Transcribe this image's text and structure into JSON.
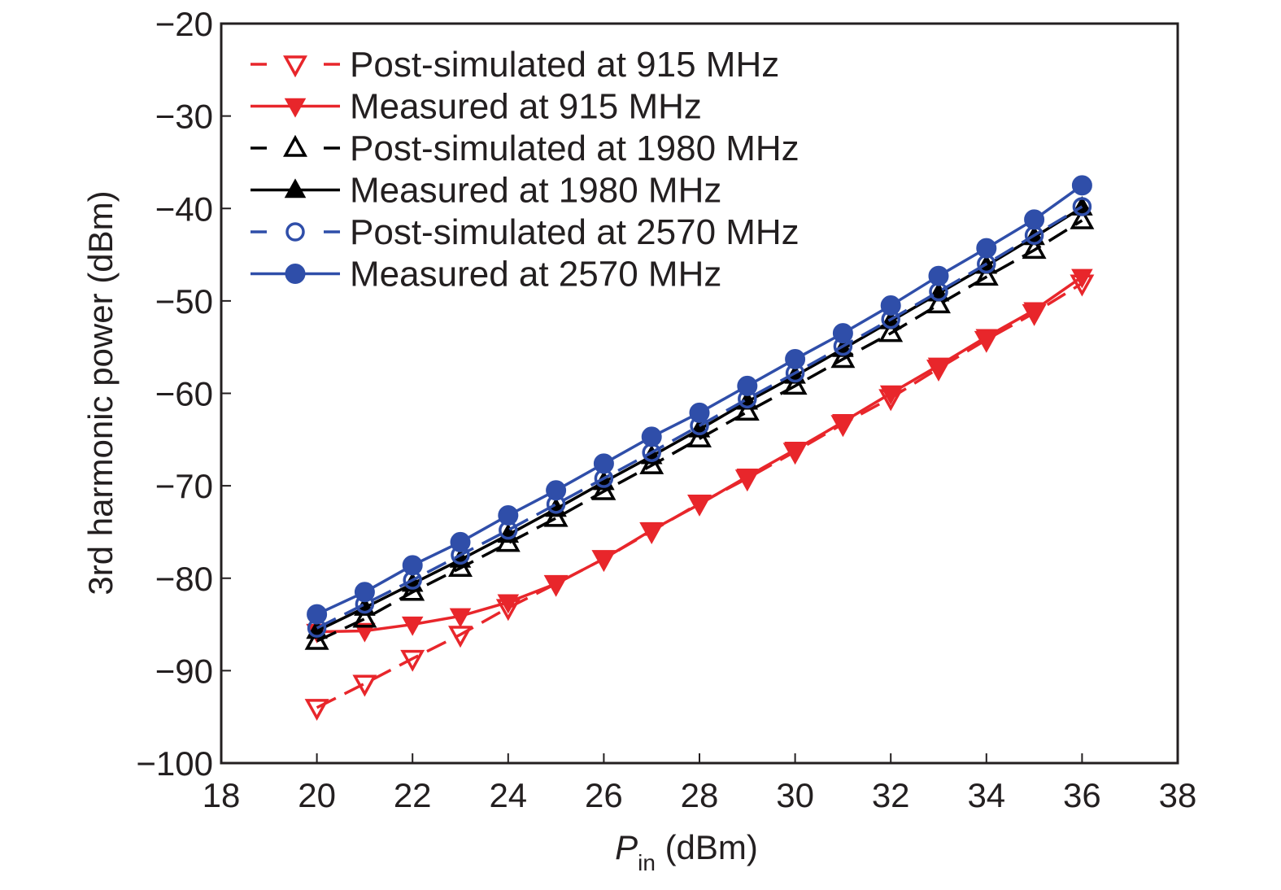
{
  "chart_data": {
    "type": "line",
    "title": "",
    "xlabel": "P",
    "xlabel_subscript": "in",
    "xlabel_unit": " (dBm)",
    "ylabel": "3rd harmonic power (dBm)",
    "xlim": [
      18,
      38
    ],
    "ylim": [
      -100,
      -20
    ],
    "xticks": [
      18,
      20,
      22,
      24,
      26,
      28,
      30,
      32,
      34,
      36,
      38
    ],
    "yticks": [
      -20,
      -30,
      -40,
      -50,
      -60,
      -70,
      -80,
      -90,
      -100
    ],
    "xtick_labels": [
      "18",
      "20",
      "22",
      "24",
      "26",
      "28",
      "30",
      "32",
      "34",
      "36",
      "38"
    ],
    "ytick_labels": [
      "−20",
      "−30",
      "−40",
      "−50",
      "−60",
      "−70",
      "−80",
      "−90",
      "−100"
    ],
    "grid": false,
    "legend_position": "top-left",
    "x": [
      20,
      21,
      22,
      23,
      24,
      25,
      26,
      27,
      28,
      29,
      30,
      31,
      32,
      33,
      34,
      35,
      36
    ],
    "series": [
      {
        "name": "Post-simulated at 915 MHz",
        "color": "#e8262b",
        "line": "dashed",
        "marker": "triangle-down-open",
        "values": [
          -94.0,
          -91.4,
          -88.7,
          -86.1,
          -83.2,
          -80.6,
          -77.9,
          -74.9,
          -71.9,
          -69.2,
          -66.3,
          -63.3,
          -60.5,
          -57.3,
          -54.2,
          -51.3,
          -48.1
        ]
      },
      {
        "name": "Measured at 915 MHz",
        "color": "#e8262b",
        "line": "solid",
        "marker": "triangle-down-filled",
        "values": [
          -85.8,
          -85.7,
          -85.0,
          -84.1,
          -82.6,
          -80.6,
          -77.9,
          -74.8,
          -72.0,
          -69.0,
          -66.1,
          -63.1,
          -60.0,
          -57.0,
          -53.9,
          -51.0,
          -47.4
        ]
      },
      {
        "name": "Post-simulated at 1980 MHz",
        "color": "#000000",
        "line": "dashed",
        "marker": "triangle-up-open",
        "values": [
          -86.8,
          -84.4,
          -81.5,
          -78.9,
          -76.2,
          -73.5,
          -70.6,
          -67.8,
          -64.9,
          -62.0,
          -59.2,
          -56.3,
          -53.5,
          -50.4,
          -47.4,
          -44.5,
          -41.3
        ]
      },
      {
        "name": "Measured at 1980 MHz",
        "color": "#000000",
        "line": "solid",
        "marker": "triangle-up-filled",
        "values": [
          -85.7,
          -83.2,
          -80.6,
          -78.0,
          -75.3,
          -72.5,
          -69.6,
          -66.8,
          -63.9,
          -60.9,
          -58.1,
          -55.2,
          -52.2,
          -49.2,
          -46.2,
          -43.1,
          -39.9
        ]
      },
      {
        "name": "Post-simulated at 2570 MHz",
        "color": "#2f4ea9",
        "line": "dashed",
        "marker": "circle-open",
        "values": [
          -85.4,
          -82.8,
          -80.2,
          -77.5,
          -74.8,
          -72.0,
          -69.2,
          -66.4,
          -63.5,
          -60.6,
          -57.8,
          -54.9,
          -52.0,
          -49.0,
          -46.0,
          -42.9,
          -39.8
        ]
      },
      {
        "name": "Measured at 2570 MHz",
        "color": "#2f4ea9",
        "line": "solid",
        "marker": "circle-filled",
        "values": [
          -83.9,
          -81.5,
          -78.6,
          -76.1,
          -73.2,
          -70.5,
          -67.6,
          -64.7,
          -62.1,
          -59.2,
          -56.3,
          -53.5,
          -50.5,
          -47.3,
          -44.3,
          -41.2,
          -37.5
        ]
      }
    ]
  }
}
